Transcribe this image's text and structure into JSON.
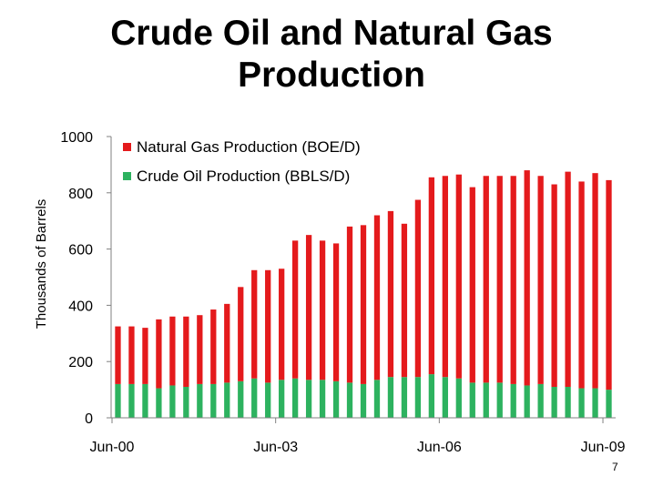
{
  "slide": {
    "title_line1": "Crude Oil and Natural Gas",
    "title_line2": "Production",
    "page_number": "7"
  },
  "colors": {
    "gas": "#e41a1c",
    "oil": "#2db25f",
    "axis": "#808080"
  },
  "chart_data": {
    "type": "bar",
    "stacked": true,
    "title": "",
    "xlabel": "",
    "ylabel": "Thousands of Barrels",
    "ylim": [
      0,
      1000
    ],
    "yticks": [
      0,
      200,
      400,
      600,
      800,
      1000
    ],
    "xtick_labels": [
      {
        "label": "Jun-00",
        "index": 0
      },
      {
        "label": "Jun-03",
        "index": 12
      },
      {
        "label": "Jun-06",
        "index": 24
      },
      {
        "label": "Jun-09",
        "index": 36
      }
    ],
    "categories": [
      "Jun-00",
      "Sep-00",
      "Dec-00",
      "Mar-01",
      "Jun-01",
      "Sep-01",
      "Dec-01",
      "Mar-02",
      "Jun-02",
      "Sep-02",
      "Dec-02",
      "Mar-03",
      "Jun-03",
      "Sep-03",
      "Dec-03",
      "Mar-04",
      "Jun-04",
      "Sep-04",
      "Dec-04",
      "Mar-05",
      "Jun-05",
      "Sep-05",
      "Dec-05",
      "Mar-06",
      "Jun-06",
      "Sep-06",
      "Dec-06",
      "Mar-07",
      "Jun-07",
      "Sep-07",
      "Dec-07",
      "Mar-08",
      "Jun-08",
      "Sep-08",
      "Dec-08",
      "Mar-09",
      "Jun-09"
    ],
    "legend_position": "top-left",
    "series": [
      {
        "name": "Natural Gas Production (BOE/D)",
        "color_key": "gas",
        "values": [
          205,
          205,
          200,
          245,
          245,
          250,
          245,
          265,
          280,
          335,
          385,
          400,
          395,
          490,
          515,
          495,
          490,
          555,
          565,
          585,
          590,
          545,
          630,
          700,
          715,
          725,
          695,
          735,
          735,
          740,
          765,
          740,
          720,
          765,
          735,
          765,
          745
        ]
      },
      {
        "name": "Crude Oil Production (BBLS/D)",
        "color_key": "oil",
        "values": [
          120,
          120,
          120,
          105,
          115,
          110,
          120,
          120,
          125,
          130,
          140,
          125,
          135,
          140,
          135,
          135,
          130,
          125,
          120,
          135,
          145,
          145,
          145,
          155,
          145,
          140,
          125,
          125,
          125,
          120,
          115,
          120,
          110,
          110,
          105,
          105,
          100
        ]
      }
    ]
  }
}
